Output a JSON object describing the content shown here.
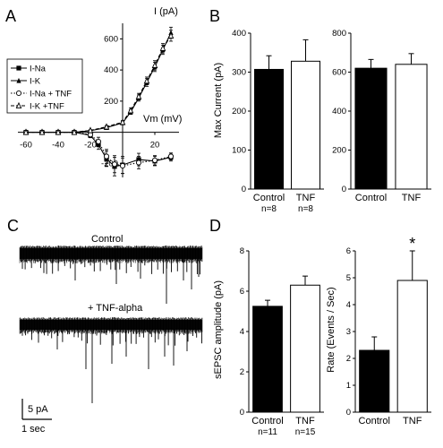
{
  "panels": {
    "A": {
      "letter": "A",
      "chart_data": {
        "type": "line",
        "ylabel": "I (pA)",
        "xlabel": "Vm (mV)",
        "xlim": [
          -65,
          35
        ],
        "ylim": [
          -290,
          700
        ],
        "x_ticks": [
          -60,
          -40,
          -20,
          0,
          20
        ],
        "x_tick_labels": [
          "-60",
          "-40",
          "-20",
          "",
          "20"
        ],
        "y_ticks": [
          -200,
          200,
          400,
          600
        ],
        "y_tick_labels": [
          "-200",
          "200",
          "400",
          "600"
        ],
        "legend_position": "left",
        "series": [
          {
            "name": "I-Na",
            "marker": "filled-square",
            "line": "solid",
            "x": [
              -60,
              -50,
              -40,
              -30,
              -20,
              -15,
              -10,
              -5,
              0,
              10,
              20,
              30
            ],
            "y": [
              0,
              0,
              0,
              0,
              -20,
              -80,
              -170,
              -220,
              -210,
              -175,
              -185,
              -160
            ],
            "err": [
              0,
              0,
              0,
              0,
              15,
              30,
              50,
              60,
              55,
              40,
              30,
              25
            ]
          },
          {
            "name": "I-K",
            "marker": "filled-triangle",
            "line": "solid",
            "x": [
              -60,
              -50,
              -40,
              -30,
              -20,
              -10,
              0,
              5,
              10,
              15,
              20,
              25,
              30
            ],
            "y": [
              0,
              0,
              0,
              0,
              10,
              30,
              60,
              130,
              220,
              320,
              420,
              530,
              640
            ],
            "err": [
              0,
              0,
              0,
              0,
              5,
              8,
              10,
              15,
              20,
              25,
              30,
              30,
              35
            ]
          },
          {
            "name": "I-Na + TNF",
            "marker": "open-circle",
            "line": "dotted",
            "x": [
              -60,
              -50,
              -40,
              -30,
              -20,
              -15,
              -10,
              -5,
              0,
              10,
              20,
              30
            ],
            "y": [
              0,
              0,
              0,
              0,
              -15,
              -60,
              -155,
              -205,
              -215,
              -195,
              -180,
              -155
            ],
            "err": [
              0,
              0,
              0,
              0,
              12,
              28,
              45,
              55,
              50,
              40,
              30,
              22
            ]
          },
          {
            "name": "I-K +TNF",
            "marker": "open-triangle",
            "line": "dashed",
            "x": [
              -60,
              -50,
              -40,
              -30,
              -20,
              -10,
              0,
              5,
              10,
              15,
              20,
              25,
              30
            ],
            "y": [
              0,
              0,
              0,
              0,
              12,
              35,
              65,
              140,
              230,
              330,
              430,
              540,
              620
            ],
            "err": [
              0,
              0,
              0,
              0,
              5,
              8,
              10,
              15,
              20,
              25,
              30,
              30,
              35
            ]
          }
        ]
      }
    },
    "B": {
      "letter": "B",
      "chart_data": [
        {
          "type": "bar",
          "categories": [
            "Control",
            "TNF"
          ],
          "values": [
            307,
            328
          ],
          "errors": [
            35,
            55
          ],
          "ylim": [
            0,
            400
          ],
          "ylabel": "Max Current (pA)",
          "y_ticks": [
            0,
            100,
            200,
            300,
            400
          ],
          "y_tick_labels": [
            "0",
            "100",
            "200",
            "300",
            "400"
          ],
          "n_labels": [
            "n=8",
            "n=8"
          ],
          "fills": [
            "#000000",
            "#ffffff"
          ]
        },
        {
          "type": "bar",
          "categories": [
            "Control",
            "TNF"
          ],
          "values": [
            620,
            640
          ],
          "errors": [
            45,
            55
          ],
          "ylim": [
            0,
            800
          ],
          "ylabel": "",
          "y_ticks": [
            0,
            200,
            400,
            600,
            800
          ],
          "y_tick_labels": [
            "0",
            "200",
            "400",
            "600",
            "800"
          ],
          "fills": [
            "#000000",
            "#ffffff"
          ]
        }
      ]
    },
    "C": {
      "letter": "C",
      "trace1_label": "Control",
      "trace2_label": "+ TNF-alpha",
      "scale_y_label": "5 pA",
      "scale_x_label": "1 sec"
    },
    "D": {
      "letter": "D",
      "chart_data": [
        {
          "type": "bar",
          "categories": [
            "Control",
            "TNF"
          ],
          "values": [
            5.25,
            6.3
          ],
          "errors": [
            0.3,
            0.45
          ],
          "ylim": [
            0,
            8
          ],
          "ylabel": "sEPSC amplitude (pA)",
          "y_ticks": [
            0,
            2,
            4,
            6,
            8
          ],
          "y_tick_labels": [
            "0",
            "2",
            "4",
            "6",
            "8"
          ],
          "n_labels": [
            "n=11",
            "n=15"
          ],
          "fills": [
            "#000000",
            "#ffffff"
          ]
        },
        {
          "type": "bar",
          "categories": [
            "Control",
            "TNF"
          ],
          "values": [
            2.3,
            4.9
          ],
          "errors": [
            0.5,
            1.1
          ],
          "ylim": [
            0,
            6
          ],
          "ylabel": "Rate (Events / Sec)",
          "y_ticks": [
            0,
            1,
            2,
            3,
            4,
            5,
            6
          ],
          "y_tick_labels": [
            "0",
            "1",
            "2",
            "3",
            "4",
            "5",
            "6"
          ],
          "annotation": "*",
          "fills": [
            "#000000",
            "#ffffff"
          ]
        }
      ]
    }
  }
}
